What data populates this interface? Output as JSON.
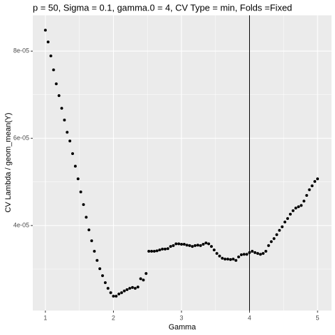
{
  "chart_data": {
    "type": "scatter",
    "title": "p = 50, Sigma = 0.1, gamma.0 = 4, CV Type = min, Folds =Fixed",
    "x_label": "Gamma",
    "y_label": "CV Lambda / geom_mean(Y)",
    "x": [
      1.0,
      1.04,
      1.08,
      1.12,
      1.16,
      1.2,
      1.24,
      1.28,
      1.32,
      1.36,
      1.4,
      1.44,
      1.48,
      1.52,
      1.56,
      1.6,
      1.64,
      1.68,
      1.72,
      1.76,
      1.8,
      1.84,
      1.88,
      1.92,
      1.96,
      2.0,
      2.04,
      2.08,
      2.12,
      2.16,
      2.2,
      2.24,
      2.28,
      2.32,
      2.36,
      2.4,
      2.44,
      2.48,
      2.52,
      2.56,
      2.6,
      2.64,
      2.68,
      2.72,
      2.76,
      2.8,
      2.84,
      2.88,
      2.92,
      2.96,
      3.0,
      3.04,
      3.08,
      3.12,
      3.16,
      3.2,
      3.24,
      3.28,
      3.32,
      3.36,
      3.4,
      3.44,
      3.48,
      3.52,
      3.56,
      3.6,
      3.64,
      3.68,
      3.72,
      3.76,
      3.8,
      3.84,
      3.88,
      3.92,
      3.96,
      4.0,
      4.04,
      4.08,
      4.12,
      4.16,
      4.2,
      4.24,
      4.28,
      4.32,
      4.36,
      4.4,
      4.44,
      4.48,
      4.52,
      4.56,
      4.6,
      4.64,
      4.68,
      4.72,
      4.76,
      4.8,
      4.84,
      4.88,
      4.92,
      4.96,
      5.0
    ],
    "values": [
      8.48e-05,
      8.21e-05,
      7.89e-05,
      7.57e-05,
      7.25e-05,
      6.98e-05,
      6.69e-05,
      6.42e-05,
      6.14e-05,
      5.94e-05,
      5.65e-05,
      5.36e-05,
      5.07e-05,
      4.77e-05,
      4.48e-05,
      4.19e-05,
      3.9e-05,
      3.65e-05,
      3.41e-05,
      3.2e-05,
      3.01e-05,
      2.85e-05,
      2.69e-05,
      2.56e-05,
      2.46e-05,
      2.38e-05,
      2.38e-05,
      2.43e-05,
      2.46e-05,
      2.5e-05,
      2.53e-05,
      2.56e-05,
      2.58e-05,
      2.56e-05,
      2.59e-05,
      2.78e-05,
      2.75e-05,
      2.9e-05,
      3.41e-05,
      3.41e-05,
      3.41e-05,
      3.42e-05,
      3.44e-05,
      3.46e-05,
      3.46e-05,
      3.47e-05,
      3.52e-05,
      3.54e-05,
      3.58e-05,
      3.58e-05,
      3.57e-05,
      3.57e-05,
      3.55e-05,
      3.54e-05,
      3.52e-05,
      3.54e-05,
      3.55e-05,
      3.54e-05,
      3.57e-05,
      3.6e-05,
      3.58e-05,
      3.52e-05,
      3.44e-05,
      3.36e-05,
      3.3e-05,
      3.25e-05,
      3.23e-05,
      3.23e-05,
      3.22e-05,
      3.23e-05,
      3.2e-05,
      3.28e-05,
      3.33e-05,
      3.34e-05,
      3.34e-05,
      3.38e-05,
      3.41e-05,
      3.38e-05,
      3.36e-05,
      3.34e-05,
      3.36e-05,
      3.41e-05,
      3.54e-05,
      3.63e-05,
      3.7e-05,
      3.79e-05,
      3.89e-05,
      3.97e-05,
      4.08e-05,
      4.16e-05,
      4.26e-05,
      4.34e-05,
      4.4e-05,
      4.43e-05,
      4.46e-05,
      4.56e-05,
      4.69e-05,
      4.82e-05,
      4.91e-05,
      5.01e-05,
      5.07e-05
    ],
    "color": "#000000",
    "vline": 4,
    "xlim": [
      0.815,
      5.205
    ],
    "xticks": [
      1,
      2,
      3,
      4,
      5
    ],
    "ylim": [
      2.05e-05,
      8.82e-05
    ],
    "yticks": [
      {
        "value": 4e-05,
        "label": "4e-05"
      },
      {
        "value": 6e-05,
        "label": "6e-05"
      },
      {
        "value": 8e-05,
        "label": "8e-05"
      }
    ],
    "grid": true
  }
}
